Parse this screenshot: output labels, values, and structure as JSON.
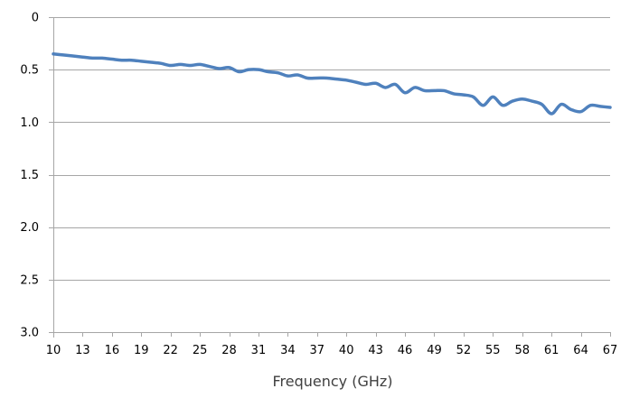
{
  "chart_data": {
    "type": "line",
    "title": "",
    "xlabel": "Frequency (GHz)",
    "ylabel": "",
    "x_tick_labels": [
      "10",
      "13",
      "16",
      "19",
      "22",
      "25",
      "28",
      "31",
      "34",
      "37",
      "40",
      "43",
      "46",
      "49",
      "52",
      "55",
      "58",
      "61",
      "64",
      "67"
    ],
    "y_tick_labels": [
      "0",
      "0.5",
      "1.0",
      "1.5",
      "2.0",
      "2.5",
      "3.0"
    ],
    "y_tick_values": [
      0,
      0.5,
      1.0,
      1.5,
      2.0,
      2.5,
      3.0
    ],
    "xlim": [
      10,
      67
    ],
    "ylim": [
      0,
      3.0
    ],
    "y_inverted": true,
    "grid": true,
    "legend": "none",
    "series": [
      {
        "color": "#4f81bd",
        "x": [
          10,
          11,
          12,
          13,
          14,
          15,
          16,
          17,
          18,
          19,
          20,
          21,
          22,
          23,
          24,
          25,
          26,
          27,
          28,
          29,
          30,
          31,
          32,
          33,
          34,
          35,
          36,
          37,
          38,
          39,
          40,
          41,
          42,
          43,
          44,
          45,
          46,
          47,
          48,
          49,
          50,
          51,
          52,
          53,
          54,
          55,
          56,
          57,
          58,
          59,
          60,
          61,
          62,
          63,
          64,
          65,
          66,
          67
        ],
        "y": [
          0.35,
          0.36,
          0.37,
          0.38,
          0.39,
          0.39,
          0.4,
          0.41,
          0.41,
          0.42,
          0.43,
          0.44,
          0.46,
          0.45,
          0.46,
          0.45,
          0.47,
          0.49,
          0.48,
          0.52,
          0.5,
          0.5,
          0.52,
          0.53,
          0.56,
          0.55,
          0.58,
          0.58,
          0.58,
          0.59,
          0.6,
          0.62,
          0.64,
          0.63,
          0.67,
          0.64,
          0.72,
          0.67,
          0.7,
          0.7,
          0.7,
          0.73,
          0.74,
          0.76,
          0.84,
          0.76,
          0.84,
          0.8,
          0.78,
          0.8,
          0.83,
          0.92,
          0.83,
          0.88,
          0.9,
          0.84,
          0.85,
          0.86
        ]
      }
    ]
  }
}
